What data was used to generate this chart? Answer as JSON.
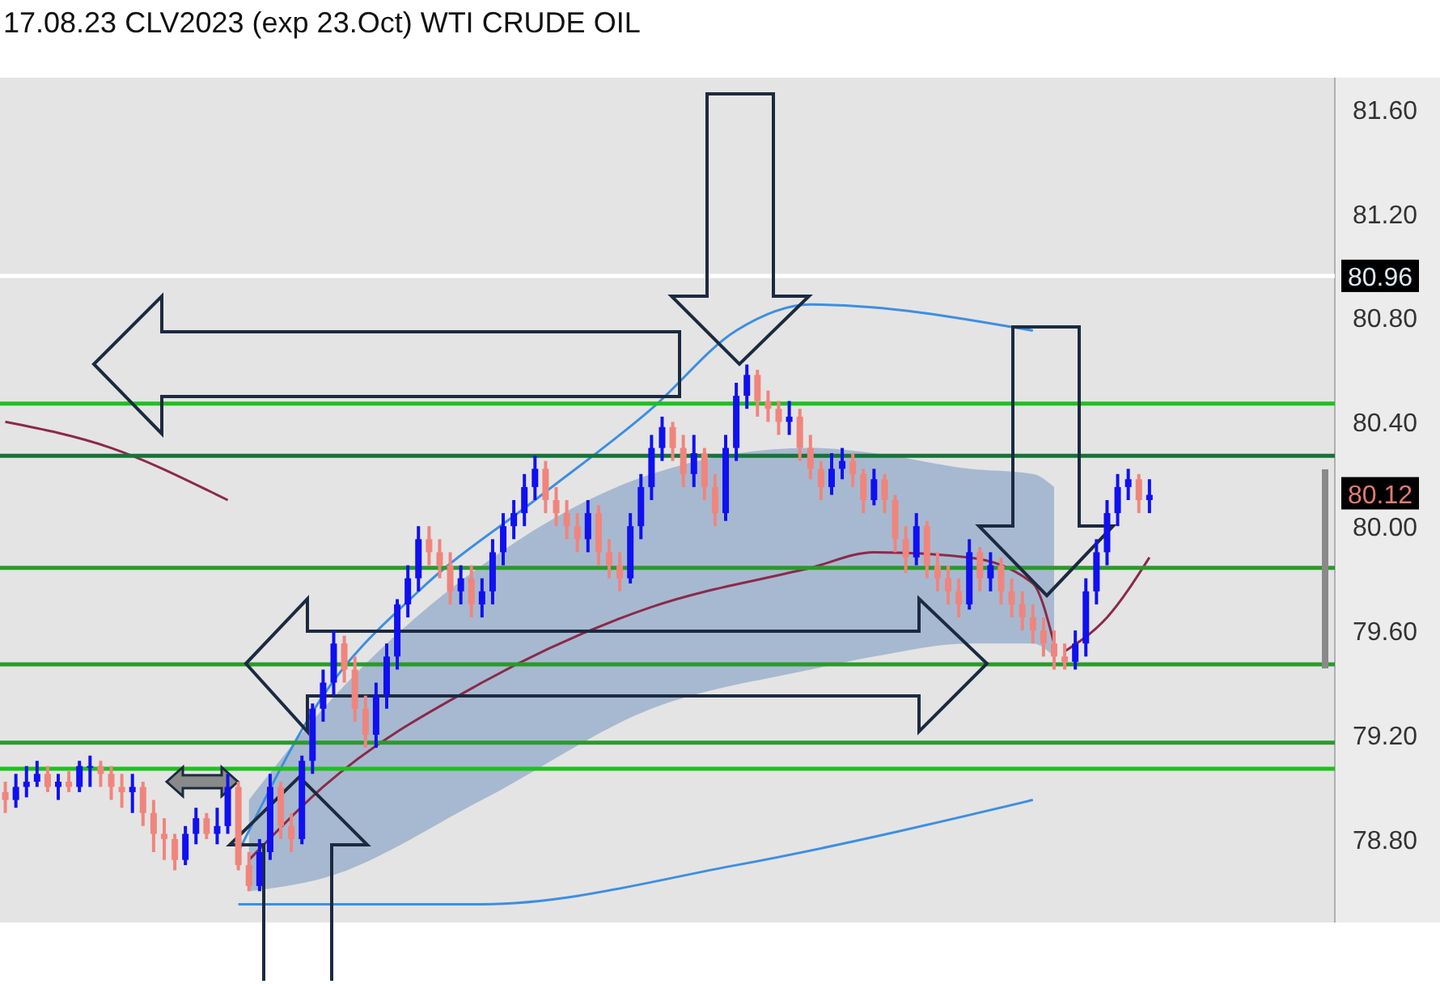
{
  "chart_data": {
    "type": "candlestick",
    "title": "17.08.23 CLV2023 (exp 23.Oct) WTI CRUDE OIL",
    "categories": [
      null,
      null,
      null,
      null,
      null,
      null,
      null,
      null,
      null,
      null,
      null,
      null,
      null,
      null,
      null,
      null,
      null,
      null,
      null,
      null,
      null,
      null,
      null,
      null,
      null,
      null,
      null,
      null,
      null,
      null,
      null,
      null,
      null,
      null,
      null,
      null,
      null,
      null,
      null,
      null,
      null,
      null,
      null,
      null,
      null,
      null,
      null,
      null,
      null,
      null,
      null,
      null,
      null,
      null,
      null,
      null,
      null,
      null,
      null,
      null,
      null,
      null,
      null,
      null,
      null,
      null,
      null,
      null,
      null,
      null,
      null,
      null,
      null,
      null,
      null,
      null,
      null,
      null,
      null,
      null,
      null,
      null,
      null,
      null,
      null,
      null,
      null,
      null,
      null,
      null,
      null,
      null,
      null,
      null,
      null,
      null,
      null,
      null,
      null,
      null,
      null,
      null,
      null,
      null,
      null,
      null,
      null,
      null,
      null,
      null,
      null,
      null,
      null,
      null,
      null,
      null,
      null,
      null,
      null,
      null,
      null,
      null,
      null,
      null,
      null,
      null
    ],
    "ohlc": [
      [
        78.98,
        79.02,
        78.9,
        78.95
      ],
      [
        78.95,
        79.05,
        78.92,
        79.0
      ],
      [
        79.0,
        79.08,
        78.96,
        79.02
      ],
      [
        79.02,
        79.1,
        79.0,
        79.05
      ],
      [
        79.05,
        79.08,
        78.98,
        79.0
      ],
      [
        79.0,
        79.05,
        78.95,
        79.02
      ],
      [
        79.02,
        79.06,
        78.98,
        79.0
      ],
      [
        79.0,
        79.1,
        78.98,
        79.08
      ],
      [
        79.08,
        79.12,
        79.0,
        79.08
      ],
      [
        79.08,
        79.1,
        79.0,
        79.05
      ],
      [
        79.05,
        79.08,
        78.95,
        79.0
      ],
      [
        79.0,
        79.05,
        78.92,
        78.98
      ],
      [
        78.98,
        79.05,
        78.9,
        79.0
      ],
      [
        79.0,
        79.02,
        78.85,
        78.9
      ],
      [
        78.9,
        78.95,
        78.75,
        78.82
      ],
      [
        78.82,
        78.88,
        78.72,
        78.8
      ],
      [
        78.8,
        78.82,
        78.68,
        78.72
      ],
      [
        78.72,
        78.85,
        78.7,
        78.82
      ],
      [
        78.82,
        78.92,
        78.78,
        78.88
      ],
      [
        78.88,
        78.9,
        78.8,
        78.82
      ],
      [
        78.82,
        78.92,
        78.78,
        78.85
      ],
      [
        78.85,
        79.05,
        78.82,
        79.0
      ],
      [
        79.0,
        79.02,
        78.68,
        78.7
      ],
      [
        78.7,
        78.75,
        78.6,
        78.62
      ],
      [
        78.62,
        78.8,
        78.6,
        78.75
      ],
      [
        78.75,
        79.05,
        78.72,
        79.0
      ],
      [
        79.0,
        79.02,
        78.8,
        78.85
      ],
      [
        78.85,
        78.9,
        78.75,
        78.8
      ],
      [
        78.8,
        79.12,
        78.78,
        79.1
      ],
      [
        79.1,
        79.32,
        79.05,
        79.3
      ],
      [
        79.3,
        79.45,
        79.25,
        79.4
      ],
      [
        79.4,
        79.6,
        79.35,
        79.55
      ],
      [
        79.55,
        79.58,
        79.4,
        79.45
      ],
      [
        79.45,
        79.5,
        79.25,
        79.3
      ],
      [
        79.3,
        79.35,
        79.15,
        79.2
      ],
      [
        79.2,
        79.4,
        79.15,
        79.35
      ],
      [
        79.35,
        79.55,
        79.3,
        79.5
      ],
      [
        79.5,
        79.72,
        79.45,
        79.7
      ],
      [
        79.7,
        79.85,
        79.65,
        79.8
      ],
      [
        79.8,
        80.0,
        79.75,
        79.95
      ],
      [
        79.95,
        80.0,
        79.85,
        79.9
      ],
      [
        79.9,
        79.95,
        79.8,
        79.85
      ],
      [
        79.85,
        79.9,
        79.7,
        79.75
      ],
      [
        79.75,
        79.85,
        79.7,
        79.8
      ],
      [
        79.8,
        79.85,
        79.65,
        79.7
      ],
      [
        79.7,
        79.8,
        79.65,
        79.75
      ],
      [
        79.75,
        79.95,
        79.7,
        79.9
      ],
      [
        79.9,
        80.05,
        79.85,
        80.0
      ],
      [
        80.0,
        80.1,
        79.95,
        80.05
      ],
      [
        80.05,
        80.2,
        80.0,
        80.15
      ],
      [
        80.15,
        80.27,
        80.1,
        80.22
      ],
      [
        80.22,
        80.25,
        80.05,
        80.1
      ],
      [
        80.1,
        80.15,
        80.0,
        80.05
      ],
      [
        80.05,
        80.1,
        79.95,
        80.0
      ],
      [
        80.0,
        80.05,
        79.9,
        79.95
      ],
      [
        79.95,
        80.1,
        79.9,
        80.05
      ],
      [
        80.05,
        80.08,
        79.85,
        79.9
      ],
      [
        79.9,
        79.95,
        79.8,
        79.85
      ],
      [
        79.85,
        79.9,
        79.75,
        79.8
      ],
      [
        79.8,
        80.05,
        79.78,
        80.0
      ],
      [
        80.0,
        80.2,
        79.95,
        80.15
      ],
      [
        80.15,
        80.35,
        80.1,
        80.3
      ],
      [
        80.3,
        80.42,
        80.25,
        80.38
      ],
      [
        80.38,
        80.4,
        80.25,
        80.3
      ],
      [
        80.3,
        80.35,
        80.15,
        80.2
      ],
      [
        80.2,
        80.35,
        80.15,
        80.28
      ],
      [
        80.28,
        80.3,
        80.1,
        80.15
      ],
      [
        80.15,
        80.2,
        80.0,
        80.05
      ],
      [
        80.05,
        80.35,
        80.02,
        80.3
      ],
      [
        80.3,
        80.55,
        80.25,
        80.5
      ],
      [
        80.5,
        80.62,
        80.45,
        80.58
      ],
      [
        80.58,
        80.6,
        80.42,
        80.48
      ],
      [
        80.48,
        80.52,
        80.4,
        80.45
      ],
      [
        80.45,
        80.48,
        80.35,
        80.4
      ],
      [
        80.4,
        80.48,
        80.35,
        80.42
      ],
      [
        80.42,
        80.45,
        80.25,
        80.3
      ],
      [
        80.3,
        80.35,
        80.18,
        80.22
      ],
      [
        80.22,
        80.25,
        80.1,
        80.15
      ],
      [
        80.15,
        80.28,
        80.12,
        80.22
      ],
      [
        80.22,
        80.3,
        80.18,
        80.25
      ],
      [
        80.25,
        80.28,
        80.15,
        80.2
      ],
      [
        80.2,
        80.22,
        80.05,
        80.1
      ],
      [
        80.1,
        80.22,
        80.08,
        80.18
      ],
      [
        80.18,
        80.2,
        80.05,
        80.1
      ],
      [
        80.1,
        80.12,
        79.9,
        79.95
      ],
      [
        79.95,
        80.0,
        79.82,
        79.88
      ],
      [
        79.88,
        80.05,
        79.85,
        80.0
      ],
      [
        80.0,
        80.02,
        79.8,
        79.85
      ],
      [
        79.85,
        79.9,
        79.75,
        79.8
      ],
      [
        79.8,
        79.85,
        79.7,
        79.75
      ],
      [
        79.75,
        79.8,
        79.65,
        79.7
      ],
      [
        79.7,
        79.95,
        79.68,
        79.9
      ],
      [
        79.9,
        79.92,
        79.75,
        79.8
      ],
      [
        79.8,
        79.9,
        79.75,
        79.85
      ],
      [
        79.85,
        79.88,
        79.7,
        79.75
      ],
      [
        79.75,
        79.8,
        79.65,
        79.7
      ],
      [
        79.7,
        79.75,
        79.6,
        79.65
      ],
      [
        79.65,
        79.7,
        79.55,
        79.6
      ],
      [
        79.6,
        79.65,
        79.5,
        79.55
      ],
      [
        79.55,
        79.6,
        79.45,
        79.5
      ],
      [
        79.5,
        79.55,
        79.45,
        79.48
      ],
      [
        79.48,
        79.6,
        79.45,
        79.55
      ],
      [
        79.55,
        79.8,
        79.5,
        79.75
      ],
      [
        79.75,
        79.95,
        79.7,
        79.9
      ],
      [
        79.9,
        80.1,
        79.85,
        80.05
      ],
      [
        80.05,
        80.2,
        80.0,
        80.15
      ],
      [
        80.15,
        80.22,
        80.1,
        80.18
      ],
      [
        80.18,
        80.2,
        80.05,
        80.1
      ],
      [
        80.1,
        80.18,
        80.05,
        80.12
      ],
      null,
      null,
      null,
      null,
      null,
      null,
      null,
      null,
      null,
      null,
      null,
      null,
      null,
      null,
      null,
      null,
      null
    ],
    "colors": [
      "#f0857d",
      "#1010f0",
      "#1010f0",
      "#1010f0",
      "#f0857d",
      "#1010f0",
      "#f0857d",
      "#1010f0",
      "#1010f0",
      "#f0857d",
      "#f0857d",
      "#f0857d",
      "#1010f0",
      "#f0857d",
      "#f0857d",
      "#f0857d",
      "#f0857d",
      "#1010f0",
      "#1010f0",
      "#f0857d",
      "#1010f0",
      "#1010f0",
      "#f0857d",
      "#f0857d",
      "#1010f0",
      "#1010f0",
      "#f0857d",
      "#f0857d",
      "#1010f0",
      "#1010f0",
      "#1010f0",
      "#1010f0",
      "#f0857d",
      "#f0857d",
      "#f0857d",
      "#1010f0",
      "#1010f0",
      "#1010f0",
      "#1010f0",
      "#1010f0",
      "#f0857d",
      "#f0857d",
      "#f0857d",
      "#1010f0",
      "#f0857d",
      "#1010f0",
      "#1010f0",
      "#1010f0",
      "#1010f0",
      "#1010f0",
      "#1010f0",
      "#f0857d",
      "#f0857d",
      "#f0857d",
      "#f0857d",
      "#1010f0",
      "#f0857d",
      "#f0857d",
      "#f0857d",
      "#1010f0",
      "#1010f0",
      "#1010f0",
      "#1010f0",
      "#f0857d",
      "#f0857d",
      "#1010f0",
      "#f0857d",
      "#f0857d",
      "#1010f0",
      "#1010f0",
      "#1010f0",
      "#f0857d",
      "#f0857d",
      "#f0857d",
      "#1010f0",
      "#f0857d",
      "#f0857d",
      "#f0857d",
      "#1010f0",
      "#1010f0",
      "#f0857d",
      "#f0857d",
      "#1010f0",
      "#f0857d",
      "#f0857d",
      "#f0857d",
      "#1010f0",
      "#f0857d",
      "#f0857d",
      "#f0857d",
      "#f0857d",
      "#1010f0",
      "#f0857d",
      "#1010f0",
      "#f0857d",
      "#f0857d",
      "#f0857d",
      "#f0857d",
      "#f0857d",
      "#f0857d",
      "#f0857d",
      "#1010f0",
      "#1010f0",
      "#1010f0",
      "#1010f0",
      "#1010f0",
      "#1010f0",
      "#f0857d",
      "#1010f0",
      null,
      null,
      null,
      null,
      null,
      null,
      null,
      null,
      null,
      null,
      null,
      null,
      null,
      null,
      null,
      null,
      null
    ],
    "series": [
      {
        "type": "line",
        "color": "#8b2a4a",
        "values": [
          80.4,
          null,
          null,
          null,
          null,
          null,
          null,
          null,
          null,
          null,
          80.3,
          null,
          null,
          null,
          null,
          null,
          null,
          null,
          null,
          null,
          80.12,
          80.1,
          null,
          null,
          null,
          null,
          null,
          null,
          null,
          null,
          null,
          null,
          null,
          null,
          null,
          null,
          null,
          null,
          null,
          null,
          null,
          null,
          null,
          null,
          null,
          null,
          null,
          null,
          null,
          null,
          null,
          null,
          null,
          null,
          null,
          null,
          null,
          null,
          null,
          null,
          null,
          null,
          null,
          null,
          null,
          null,
          null,
          null,
          null,
          null,
          null,
          null,
          null,
          null,
          null,
          null,
          null,
          null,
          null,
          null,
          null,
          null,
          null,
          null,
          null,
          null,
          null,
          null,
          null,
          null,
          null,
          null,
          null,
          null,
          null,
          null,
          null,
          null,
          null,
          null,
          null,
          null,
          null,
          null,
          null,
          null,
          null,
          null,
          null,
          null,
          null,
          null,
          null,
          null,
          null,
          null,
          null,
          null,
          null,
          null,
          null,
          null,
          null,
          null,
          null,
          null
        ]
      },
      {
        "type": "line",
        "color": "#8b2a4a",
        "values": [
          null,
          null,
          null,
          null,
          null,
          null,
          null,
          null,
          null,
          null,
          null,
          null,
          null,
          null,
          null,
          null,
          null,
          null,
          null,
          null,
          null,
          null,
          null,
          78.72,
          null,
          null,
          null,
          null,
          null,
          null,
          79.0,
          null,
          null,
          null,
          null,
          null,
          null,
          null,
          null,
          null,
          null,
          null,
          null,
          null,
          null,
          79.4,
          null,
          null,
          null,
          null,
          null,
          null,
          null,
          null,
          null,
          null,
          null,
          null,
          null,
          null,
          null,
          79.69,
          null,
          null,
          null,
          null,
          null,
          null,
          null,
          null,
          null,
          null,
          null,
          null,
          null,
          null,
          79.84,
          null,
          null,
          null,
          null,
          null,
          79.9,
          null,
          null,
          null,
          null,
          null,
          null,
          null,
          null,
          79.88,
          null,
          null,
          null,
          null,
          null,
          79.78,
          null,
          79.55,
          null,
          null,
          null,
          null,
          null,
          null,
          null,
          null,
          null,
          null,
          null,
          null,
          null,
          null,
          null,
          null,
          null,
          null,
          null,
          null,
          null,
          null,
          null,
          null,
          null,
          null
        ],
        "lower": [
          null,
          null,
          null,
          null,
          null,
          null,
          null,
          null,
          null,
          null,
          null,
          null,
          null,
          null,
          null,
          null,
          null,
          null,
          null,
          null,
          null,
          null,
          null,
          78.6,
          null,
          null,
          null,
          null,
          null,
          null,
          78.65,
          null,
          null,
          null,
          null,
          null,
          null,
          null,
          null,
          null,
          null,
          null,
          null,
          null,
          null,
          78.95,
          null,
          null,
          null,
          null,
          null,
          null,
          null,
          null,
          null,
          null,
          null,
          null,
          null,
          null,
          null,
          79.3,
          null,
          null,
          null,
          null,
          null,
          null,
          null,
          null,
          null,
          null,
          null,
          null,
          null,
          null,
          79.45,
          null,
          null,
          null,
          null,
          null,
          79.5,
          null,
          null,
          null,
          null,
          null,
          null,
          null,
          null,
          79.55,
          null,
          null,
          null,
          null,
          null,
          79.55,
          null,
          79.5,
          null,
          null,
          null,
          null,
          null,
          null,
          null,
          null,
          null,
          null,
          null,
          null,
          null,
          null,
          null,
          null,
          null,
          null,
          null,
          null,
          null,
          null,
          null,
          null,
          null,
          null
        ],
        "upper": [
          null,
          null,
          null,
          null,
          null,
          null,
          null,
          null,
          null,
          null,
          null,
          null,
          null,
          null,
          null,
          null,
          null,
          null,
          null,
          null,
          null,
          null,
          null,
          78.95,
          null,
          null,
          null,
          null,
          null,
          null,
          79.3,
          null,
          null,
          null,
          null,
          null,
          null,
          null,
          null,
          null,
          null,
          null,
          null,
          null,
          null,
          79.85,
          null,
          null,
          null,
          null,
          null,
          null,
          null,
          null,
          null,
          null,
          null,
          null,
          null,
          null,
          null,
          80.2,
          null,
          null,
          null,
          null,
          null,
          null,
          null,
          null,
          null,
          null,
          null,
          null,
          null,
          null,
          80.3,
          null,
          null,
          null,
          null,
          null,
          80.28,
          null,
          null,
          null,
          null,
          null,
          null,
          null,
          null,
          80.22,
          null,
          null,
          null,
          null,
          null,
          80.2,
          null,
          80.15,
          null,
          null,
          null,
          null,
          null,
          null,
          null,
          null,
          null,
          null,
          null,
          null,
          null,
          null,
          null,
          null,
          null,
          null,
          null,
          null,
          null,
          null,
          null,
          null,
          null,
          null
        ]
      },
      {
        "type": "line",
        "color": "#8b2a4a",
        "values": [
          null,
          null,
          null,
          null,
          null,
          null,
          null,
          null,
          null,
          null,
          null,
          null,
          null,
          null,
          null,
          null,
          null,
          null,
          null,
          null,
          null,
          null,
          null,
          null,
          null,
          null,
          null,
          null,
          null,
          null,
          null,
          null,
          null,
          null,
          null,
          null,
          null,
          null,
          null,
          null,
          null,
          null,
          null,
          null,
          null,
          null,
          null,
          null,
          null,
          null,
          null,
          null,
          null,
          null,
          null,
          null,
          null,
          null,
          null,
          null,
          null,
          null,
          null,
          null,
          null,
          null,
          null,
          null,
          null,
          null,
          null,
          null,
          null,
          null,
          null,
          null,
          null,
          null,
          null,
          null,
          null,
          null,
          null,
          null,
          null,
          null,
          null,
          null,
          null,
          null,
          null,
          null,
          null,
          null,
          null,
          null,
          null,
          null,
          null,
          null,
          79.52,
          null,
          null,
          null,
          79.65,
          null,
          null,
          null,
          79.88,
          null,
          null,
          null,
          null,
          null,
          null,
          null,
          null,
          null,
          null,
          null,
          null,
          null,
          null,
          null,
          null,
          null
        ]
      },
      {
        "type": "line",
        "color": "#3d8fe0",
        "values": [
          null,
          null,
          null,
          null,
          null,
          null,
          null,
          null,
          null,
          null,
          null,
          null,
          null,
          null,
          null,
          null,
          null,
          null,
          null,
          null,
          null,
          null,
          78.75,
          null,
          null,
          null,
          null,
          null,
          null,
          null,
          79.35,
          null,
          null,
          null,
          null,
          null,
          null,
          null,
          null,
          79.75,
          null,
          null,
          null,
          null,
          null,
          null,
          null,
          null,
          null,
          null,
          80.1,
          null,
          null,
          null,
          null,
          null,
          null,
          null,
          null,
          null,
          null,
          80.45,
          null,
          null,
          null,
          null,
          null,
          null,
          null,
          80.75,
          null,
          null,
          null,
          null,
          null,
          null,
          80.85,
          null,
          null,
          null,
          null,
          null,
          null,
          null,
          null,
          null,
          null,
          null,
          null,
          null,
          null,
          null,
          null,
          null,
          null,
          null,
          null,
          80.75,
          null,
          null,
          null,
          null,
          null,
          null,
          null,
          null,
          null,
          null,
          null,
          null,
          null,
          null,
          null,
          null,
          null,
          null,
          null,
          null,
          null,
          null,
          null,
          null,
          null,
          null,
          null,
          null
        ]
      },
      {
        "type": "line",
        "color": "#3d8fe0",
        "values": [
          null,
          null,
          null,
          null,
          null,
          null,
          null,
          null,
          null,
          null,
          null,
          null,
          null,
          null,
          null,
          null,
          null,
          null,
          null,
          null,
          null,
          null,
          78.55,
          null,
          null,
          null,
          null,
          null,
          null,
          null,
          null,
          null,
          null,
          null,
          null,
          null,
          null,
          null,
          null,
          null,
          null,
          null,
          null,
          null,
          null,
          78.55,
          null,
          null,
          null,
          null,
          null,
          null,
          null,
          null,
          null,
          null,
          null,
          null,
          null,
          null,
          null,
          null,
          null,
          null,
          null,
          null,
          null,
          null,
          null,
          78.7,
          null,
          null,
          null,
          null,
          null,
          null,
          null,
          null,
          null,
          null,
          null,
          null,
          null,
          null,
          null,
          null,
          null,
          null,
          null,
          null,
          null,
          null,
          null,
          null,
          null,
          null,
          null,
          78.95,
          null,
          null,
          null,
          null,
          null,
          null,
          null,
          null,
          null,
          null,
          null,
          null,
          null,
          null,
          null,
          null,
          null,
          null,
          null,
          null,
          null,
          null,
          null,
          null,
          null,
          null,
          null,
          null
        ]
      }
    ],
    "ylim": [
      78.48,
      81.72
    ],
    "yticks": [
      {
        "value": 78.8,
        "label": "78.80"
      },
      {
        "value": 79.2,
        "label": "79.20"
      },
      {
        "value": 79.6,
        "label": "79.60"
      },
      {
        "value": 80.0,
        "label": "80.00"
      },
      {
        "value": 80.4,
        "label": "80.40"
      },
      {
        "value": 80.8,
        "label": "80.80"
      },
      {
        "value": 81.2,
        "label": "81.20"
      },
      {
        "value": 81.6,
        "label": "81.60"
      }
    ],
    "ref_lines": [
      {
        "axis": "y",
        "value": 80.47,
        "color": "#1fc01f"
      },
      {
        "axis": "y",
        "value": 80.27,
        "color": "#17733a"
      },
      {
        "axis": "y",
        "value": 79.84,
        "color": "#2a9a2a"
      },
      {
        "axis": "y",
        "value": 79.47,
        "color": "#2a9a2a"
      },
      {
        "axis": "y",
        "value": 79.17,
        "color": "#2a9a2a"
      },
      {
        "axis": "y",
        "value": 79.07,
        "color": "#1fc01f"
      },
      {
        "axis": "y",
        "value": 80.96,
        "color": "#ffffff",
        "label": "80.96"
      }
    ],
    "annotations": [
      "80.12"
    ]
  }
}
